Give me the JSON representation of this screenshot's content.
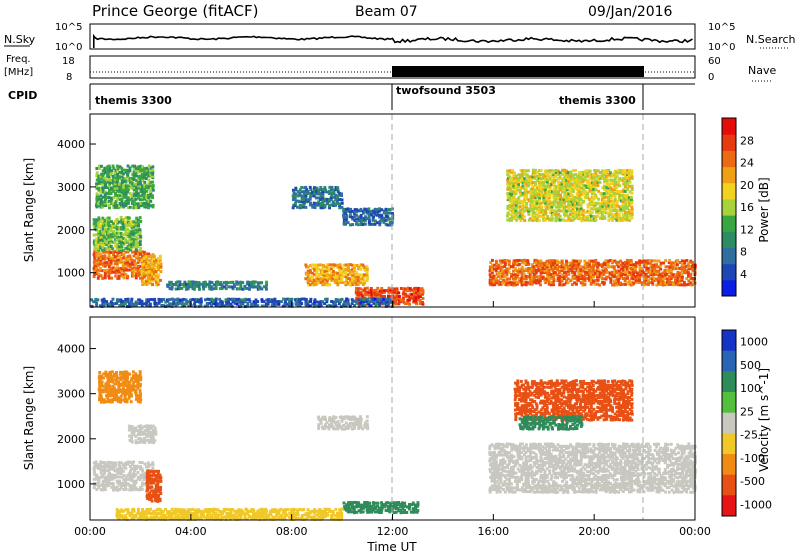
{
  "header": {
    "title": "Prince George (fitACF)",
    "beam": "Beam 07",
    "date": "09/Jan/2016"
  },
  "nsky_panel": {
    "label": "N.Sky",
    "ticks_left": [
      "10^5",
      "10^0"
    ],
    "ticks_right": [
      "10^5",
      "10^0"
    ],
    "right_label": "N.Search"
  },
  "freq_panel": {
    "label_top": "Freq.",
    "label_unit": "[MHz]",
    "ticks_left": [
      "18",
      "8"
    ],
    "ticks_right": [
      "60",
      "0"
    ],
    "right_label": "Nave"
  },
  "cpid_panel": {
    "label": "CPID",
    "segments": [
      {
        "name": "themis 3300",
        "start_h": 0,
        "end_h": 12
      },
      {
        "name": "twofsound 3503",
        "start_h": 12,
        "end_h": 22
      },
      {
        "name": "themis 3300",
        "start_h": 22,
        "end_h": 24
      }
    ]
  },
  "colors": {
    "power_scale": [
      "#0a1ee6",
      "#1e46b4",
      "#2f6fa0",
      "#2e8c64",
      "#3aa640",
      "#a7d23c",
      "#f2d21e",
      "#f0a014",
      "#ec6a12",
      "#e83a10",
      "#e60c0c"
    ],
    "velocity_scale": [
      "#1434c8",
      "#2a64b4",
      "#2e8c5a",
      "#52c03c",
      "#c8c8c0",
      "#f0c828",
      "#f08c14",
      "#e85014",
      "#e61414"
    ]
  },
  "chart_data": [
    {
      "type": "heatmap",
      "name": "Power",
      "xlabel": "",
      "ylabel": "Slant Range [km]",
      "xlim": [
        0,
        24
      ],
      "ylim": [
        200,
        4700
      ],
      "yticks": [
        "1000",
        "2000",
        "3000",
        "4000"
      ],
      "colorbar_label": "Power [dB]",
      "colorbar_ticks": [
        "4",
        "8",
        "12",
        "16",
        "20",
        "24",
        "28"
      ],
      "colorbar_range": [
        0,
        32
      ],
      "regions": [
        {
          "t0": 0.1,
          "t1": 2.5,
          "r0": 850,
          "r1": 1500,
          "val": 26
        },
        {
          "t0": 0.1,
          "t1": 2.0,
          "r0": 1500,
          "r1": 2300,
          "val": 14
        },
        {
          "t0": 0.2,
          "t1": 2.5,
          "r0": 2500,
          "r1": 3500,
          "val": 12
        },
        {
          "t0": 2.0,
          "t1": 2.8,
          "r0": 700,
          "r1": 1400,
          "val": 22
        },
        {
          "t0": 3.0,
          "t1": 7.0,
          "r0": 600,
          "r1": 800,
          "val": 8
        },
        {
          "t0": 8.5,
          "t1": 11.0,
          "r0": 700,
          "r1": 1200,
          "val": 22
        },
        {
          "t0": 10.5,
          "t1": 13.2,
          "r0": 250,
          "r1": 650,
          "val": 28
        },
        {
          "t0": 10.0,
          "t1": 12.0,
          "r0": 2100,
          "r1": 2500,
          "val": 6
        },
        {
          "t0": 8.0,
          "t1": 10.0,
          "r0": 2500,
          "r1": 3000,
          "val": 7
        },
        {
          "t0": 15.8,
          "t1": 24.0,
          "r0": 700,
          "r1": 1300,
          "val": 26
        },
        {
          "t0": 16.5,
          "t1": 21.5,
          "r0": 2200,
          "r1": 3400,
          "val": 18
        },
        {
          "t0": 0.0,
          "t1": 12.0,
          "r0": 200,
          "r1": 400,
          "val": 5
        }
      ]
    },
    {
      "type": "heatmap",
      "name": "Velocity",
      "xlabel": "Time UT",
      "ylabel": "Slant Range [km]",
      "xlim": [
        0,
        24
      ],
      "ylim": [
        200,
        4700
      ],
      "xticks": [
        "00:00",
        "04:00",
        "08:00",
        "12:00",
        "16:00",
        "20:00",
        "00:00"
      ],
      "yticks": [
        "1000",
        "2000",
        "3000",
        "4000"
      ],
      "colorbar_label": "Velocity [m s^-1]",
      "colorbar_ticks": [
        "1000",
        "500",
        "100",
        "25",
        "-25",
        "-100",
        "-500",
        "-1000"
      ],
      "regions": [
        {
          "t0": 0.1,
          "t1": 2.5,
          "r0": 850,
          "r1": 1500,
          "val": 0
        },
        {
          "t0": 1.5,
          "t1": 2.6,
          "r0": 1900,
          "r1": 2300,
          "val": 0
        },
        {
          "t0": 2.2,
          "t1": 2.8,
          "r0": 600,
          "r1": 1300,
          "val": -300
        },
        {
          "t0": 0.3,
          "t1": 2.0,
          "r0": 2800,
          "r1": 3500,
          "val": -200
        },
        {
          "t0": 9.0,
          "t1": 11.0,
          "r0": 2200,
          "r1": 2500,
          "val": 0
        },
        {
          "t0": 10.0,
          "t1": 13.0,
          "r0": 350,
          "r1": 600,
          "val": 80
        },
        {
          "t0": 1.0,
          "t1": 10.0,
          "r0": 200,
          "r1": 450,
          "val": -50
        },
        {
          "t0": 15.8,
          "t1": 24.0,
          "r0": 800,
          "r1": 1900,
          "val": 0
        },
        {
          "t0": 16.8,
          "t1": 21.5,
          "r0": 2400,
          "r1": 3300,
          "val": -500
        },
        {
          "t0": 17.0,
          "t1": 19.5,
          "r0": 2200,
          "r1": 2500,
          "val": 150
        }
      ]
    }
  ]
}
